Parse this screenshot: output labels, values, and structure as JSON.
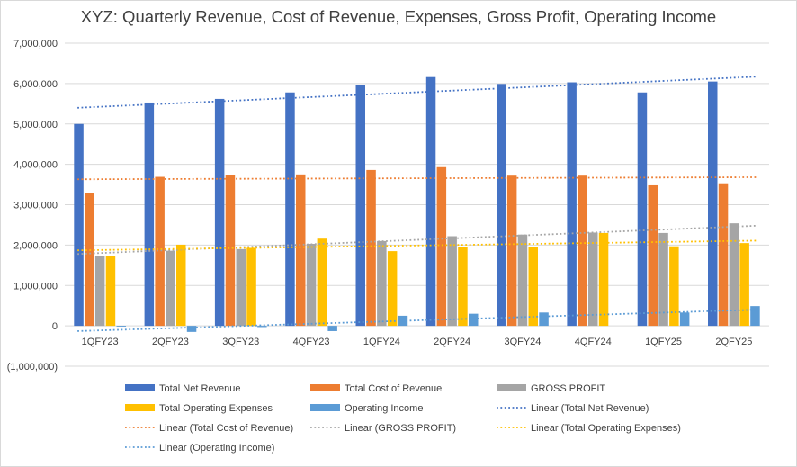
{
  "chart_data": {
    "type": "bar",
    "title": "XYZ: Quarterly Revenue, Cost of Revenue, Expenses, Gross Profit, Operating Income",
    "categories": [
      "1QFY23",
      "2QFY23",
      "3QFY23",
      "4QFY23",
      "1QFY24",
      "2QFY24",
      "3QFY24",
      "4QFY24",
      "1QFY25",
      "2QFY25"
    ],
    "ylim": [
      -1000000,
      7000000
    ],
    "yticks": [
      -1000000,
      0,
      1000000,
      2000000,
      3000000,
      4000000,
      5000000,
      6000000,
      7000000
    ],
    "ytick_labels": [
      "(1,000,000)",
      "0",
      "1,000,000",
      "2,000,000",
      "3,000,000",
      "4,000,000",
      "5,000,000",
      "6,000,000",
      "7,000,000"
    ],
    "negative_tick_color": "#ff0000",
    "grid": true,
    "legend_position": "bottom",
    "series": [
      {
        "name": "Total Net Revenue",
        "color": "#4472c4",
        "values": [
          5000000,
          5530000,
          5620000,
          5780000,
          5960000,
          6160000,
          5990000,
          6030000,
          5780000,
          6050000
        ]
      },
      {
        "name": "Total Cost of Revenue",
        "color": "#ed7d31",
        "values": [
          3290000,
          3690000,
          3730000,
          3750000,
          3860000,
          3930000,
          3720000,
          3720000,
          3480000,
          3530000
        ]
      },
      {
        "name": "GROSS PROFIT",
        "color": "#a5a5a5",
        "values": [
          1720000,
          1860000,
          1900000,
          2030000,
          2100000,
          2220000,
          2260000,
          2310000,
          2300000,
          2540000
        ]
      },
      {
        "name": "Total Operating Expenses",
        "color": "#ffc000",
        "values": [
          1740000,
          2010000,
          1930000,
          2160000,
          1850000,
          1950000,
          1950000,
          2300000,
          1970000,
          2050000
        ]
      },
      {
        "name": "Operating Income",
        "color": "#5b9bd5",
        "values": [
          -20000,
          -150000,
          -30000,
          -130000,
          250000,
          300000,
          330000,
          0,
          330000,
          490000
        ]
      }
    ],
    "trendlines": [
      {
        "name": "Linear (Total Net Revenue)",
        "color": "#4472c4",
        "start": 5400000,
        "end": 6170000
      },
      {
        "name": "Linear (Total Cost of Revenue)",
        "color": "#ed7d31",
        "start": 3630000,
        "end": 3680000
      },
      {
        "name": "Linear (GROSS PROFIT)",
        "color": "#a5a5a5",
        "start": 1780000,
        "end": 2480000
      },
      {
        "name": "Linear (Total Operating Expenses)",
        "color": "#ffc000",
        "start": 1870000,
        "end": 2110000
      },
      {
        "name": "Linear (Operating Income)",
        "color": "#5b9bd5",
        "start": -130000,
        "end": 400000
      }
    ],
    "xlabel": "",
    "ylabel": ""
  }
}
